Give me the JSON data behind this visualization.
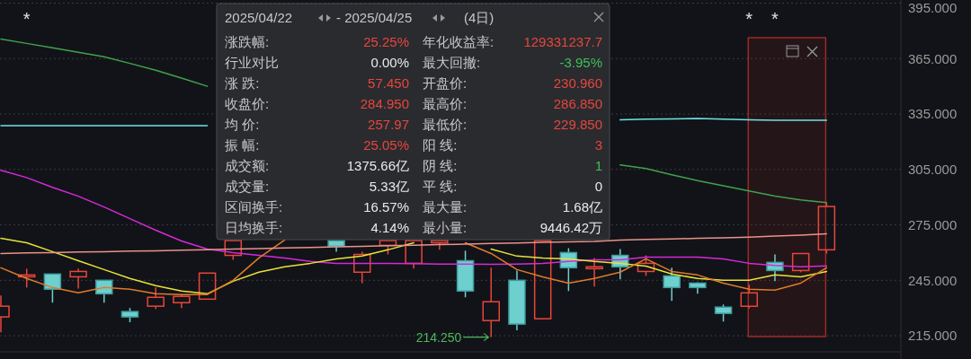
{
  "chart_data": {
    "type": "candlestick",
    "categories": [
      null,
      null,
      null,
      null,
      null,
      null,
      null,
      null,
      null,
      null,
      null,
      null,
      null,
      null,
      null,
      null,
      null,
      null,
      null,
      null,
      null,
      null,
      null,
      null,
      null,
      null,
      null,
      null,
      null,
      null,
      null,
      null,
      null
    ],
    "ohlc": [
      [
        225.2,
        236.8,
        216.9,
        231.0
      ],
      [
        246.9,
        251.3,
        241.1,
        247.9
      ],
      [
        248.4,
        248.4,
        232.9,
        240.2
      ],
      [
        246.9,
        251.3,
        240.6,
        249.8
      ],
      [
        245.0,
        245.0,
        232.9,
        237.7
      ],
      [
        228.1,
        230.0,
        222.3,
        225.2
      ],
      [
        231.0,
        241.1,
        229.5,
        235.8
      ],
      [
        232.9,
        237.3,
        230.0,
        236.3
      ],
      [
        234.8,
        248.9,
        234.8,
        248.9
      ],
      [
        258.5,
        266.5,
        256.1,
        266.5
      ],
      null,
      null,
      null,
      [
        266.5,
        266.5,
        260.5,
        263.4
      ],
      [
        249.4,
        260.5,
        243.5,
        259.0
      ],
      [
        263.9,
        266.5,
        259.0,
        266.5
      ],
      [
        254.2,
        266.5,
        251.3,
        266.5
      ],
      [
        265.3,
        266.5,
        261.5,
        266.5
      ],
      [
        255.6,
        261.0,
        235.8,
        239.2
      ],
      [
        223.2,
        251.8,
        214.25,
        233.4
      ],
      [
        245.0,
        250.3,
        217.9,
        221.3
      ],
      [
        224.2,
        266.5,
        224.0,
        266.5
      ],
      [
        260.0,
        262.4,
        239.2,
        251.8
      ],
      [
        251.3,
        257.1,
        241.6,
        252.3
      ],
      [
        258.5,
        261.9,
        245.5,
        252.3
      ],
      [
        249.8,
        258.5,
        247.4,
        254.2
      ],
      [
        247.4,
        251.8,
        233.9,
        241.1
      ],
      [
        243.5,
        244.0,
        237.7,
        241.1
      ],
      [
        230.5,
        231.9,
        222.7,
        227.1
      ],
      [
        230.96,
        242.6,
        229.85,
        238.2
      ],
      [
        254.7,
        259.0,
        244.5,
        250.3
      ],
      [
        250.3,
        259.5,
        249.4,
        259.5
      ],
      [
        261.5,
        286.85,
        259.5,
        284.95
      ]
    ],
    "series": [
      {
        "type": "line",
        "color": "#3fa34d",
        "values": [
          375.6,
          373.2,
          370.8,
          368.4,
          366.0,
          362.4,
          358.7,
          354.4,
          350.0,
          null,
          null,
          null,
          null,
          null,
          null,
          null,
          null,
          null,
          null,
          null,
          null,
          null,
          null,
          null,
          307.5,
          305.5,
          302.1,
          299.0,
          296.2,
          293.4,
          290.6,
          288.5,
          287.1
        ]
      },
      {
        "type": "line",
        "color": "#6fe3e8",
        "values": [
          328.7,
          328.7,
          328.7,
          328.7,
          328.7,
          328.7,
          328.7,
          328.7,
          328.7,
          null,
          null,
          null,
          null,
          null,
          null,
          null,
          null,
          null,
          null,
          null,
          null,
          null,
          null,
          null,
          331.8,
          332.2,
          332.4,
          332.6,
          332.2,
          331.8,
          331.6,
          331.6,
          331.6
        ]
      },
      {
        "type": "line",
        "color": "#d42ad8",
        "values": [
          304.5,
          300.6,
          295.3,
          290.5,
          284.7,
          278.4,
          272.1,
          266.3,
          261.9,
          260.0,
          258.5,
          257.1,
          255.2,
          254.2,
          254.2,
          254.2,
          254.0,
          253.8,
          253.8,
          253.6,
          253.8,
          254.2,
          255.2,
          256.1,
          256.1,
          257.6,
          257.6,
          257.6,
          256.6,
          254.2,
          253.0,
          252.3,
          252.8
        ]
      },
      {
        "type": "line",
        "color": "#e8e23a",
        "values": [
          267.7,
          265.3,
          260.5,
          255.6,
          250.8,
          246.0,
          242.1,
          239.2,
          237.7,
          244.5,
          249.4,
          252.3,
          254.2,
          256.6,
          258.1,
          261.5,
          265.3,
          null,
          null,
          261.9,
          258.1,
          257.1,
          256.6,
          255.2,
          254.2,
          252.7,
          248.4,
          246.0,
          245.0,
          245.0,
          247.9,
          246.9,
          249.8
        ]
      },
      {
        "type": "line",
        "color": "#e07b2a",
        "values": [
          251.8,
          246.0,
          241.1,
          238.2,
          241.1,
          240.2,
          237.7,
          237.3,
          237.3,
          245.0,
          257.1,
          266.8,
          null,
          null,
          null,
          null,
          null,
          null,
          265.3,
          259.5,
          250.8,
          246.9,
          243.5,
          246.0,
          249.4,
          256.6,
          249.8,
          247.9,
          243.5,
          240.2,
          239.7,
          243.5,
          251.8
        ]
      },
      {
        "type": "line",
        "color": "#e8938a",
        "values": [
          259.5,
          259.8,
          260.0,
          260.3,
          260.5,
          260.8,
          261.0,
          261.3,
          261.6,
          261.9,
          262.2,
          262.5,
          262.8,
          263.1,
          263.4,
          263.7,
          264.0,
          264.3,
          264.6,
          264.9,
          265.2,
          265.5,
          265.8,
          266.1,
          266.8,
          267.1,
          267.4,
          267.7,
          268.0,
          268.4,
          268.9,
          269.5,
          270.2
        ]
      }
    ],
    "ylim": [
      206.3,
      396.7
    ],
    "yticks": [
      {
        "value": 215,
        "label": "215.000"
      },
      {
        "value": 245,
        "label": "245.000"
      },
      {
        "value": 275,
        "label": "275.000"
      },
      {
        "value": 305,
        "label": "305.000"
      },
      {
        "value": 335,
        "label": "335.000"
      },
      {
        "value": 365,
        "label": "365.000"
      },
      {
        "value": 395,
        "label": "395.000"
      }
    ],
    "grid": "y",
    "tick_labels": "y",
    "annotations": [
      "2025/04/22",
      "- 2025/04/25",
      "(4日)",
      "涨跌幅:",
      "25.25%",
      "年化收益率:",
      "129331237.7",
      "行业对比",
      "0.00%",
      "最大回撤:",
      "-3.95%",
      "涨  跌:",
      "57.450",
      "开盘价:",
      "230.960",
      "收盘价:",
      "284.950",
      "最高价:",
      "286.850",
      "均  价:",
      "257.97",
      "最低价:",
      "229.850",
      "振  幅:",
      "25.05%",
      "阳  线:",
      "3",
      "成交额:",
      "1375.66亿",
      "阴  线:",
      "1",
      "成交量:",
      "5.33亿",
      "平  线:",
      "0",
      "区间换手:",
      "16.57%",
      "最大量:",
      "1.68亿",
      "日均换手:",
      "4.14%",
      "最小量:",
      "9446.42万",
      "*",
      "*",
      "*",
      "214.250"
    ]
  }
}
